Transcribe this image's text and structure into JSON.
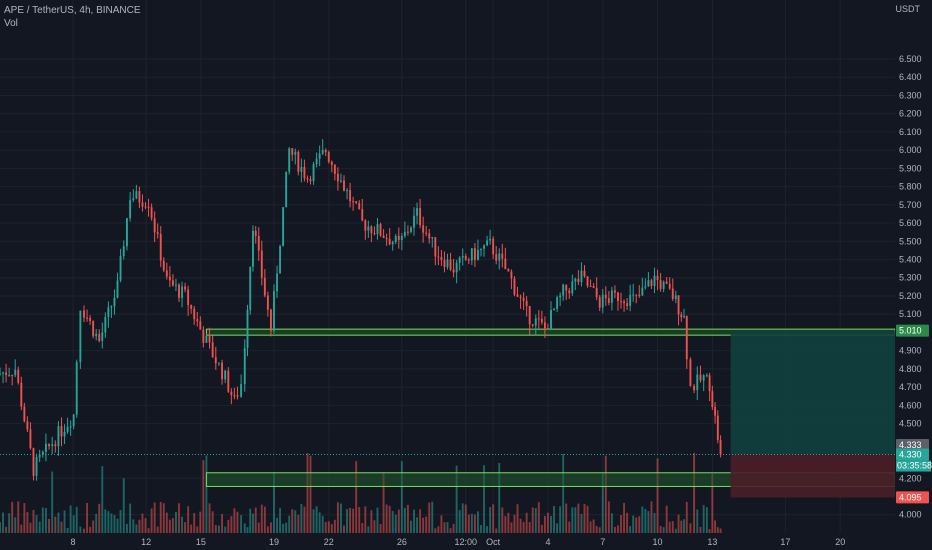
{
  "header": {
    "symbol": "APE / TetherUS, 4h, BINANCE",
    "indicator": "Vol",
    "currency": "USDT"
  },
  "colors": {
    "background": "#131722",
    "up": "#26a69a",
    "down": "#ef5350",
    "zone_fill": "#1f5a2c",
    "zone_border": "#7be05b",
    "target_zone": "#12403f",
    "stop_zone": "#4a1e28",
    "grid": "#1e222d"
  },
  "chart_data": {
    "type": "candlestick",
    "y_axis": {
      "range": [
        3.96,
        6.67
      ],
      "ticks": [
        "6.500",
        "6.400",
        "6.300",
        "6.200",
        "6.100",
        "6.000",
        "5.900",
        "5.800",
        "5.700",
        "5.600",
        "5.500",
        "5.400",
        "5.300",
        "5.200",
        "5.100",
        "4.900",
        "4.800",
        "4.700",
        "4.600",
        "4.500",
        "4.200",
        "4.000"
      ]
    },
    "x_axis": {
      "ticks": [
        "8",
        "12",
        "15",
        "19",
        "22",
        "26",
        "12:00",
        "Oct",
        "4",
        "7",
        "10",
        "13",
        "17",
        "20"
      ],
      "tick_days": [
        8,
        12,
        15,
        19,
        22,
        26,
        29.5,
        31,
        34,
        37,
        40,
        43,
        47,
        50
      ],
      "range_days": [
        4,
        53
      ]
    },
    "price_path": [
      [
        4.0,
        4.77
      ],
      [
        5.0,
        4.8
      ],
      [
        6.0,
        4.25
      ],
      [
        7.2,
        4.42
      ],
      [
        8.2,
        4.55
      ],
      [
        8.6,
        5.15
      ],
      [
        9.6,
        4.95
      ],
      [
        10.6,
        5.25
      ],
      [
        11.3,
        5.75
      ],
      [
        12.3,
        5.72
      ],
      [
        13.3,
        5.28
      ],
      [
        14.3,
        5.2
      ],
      [
        15.3,
        4.98
      ],
      [
        16.5,
        4.75
      ],
      [
        17.0,
        4.62
      ],
      [
        17.4,
        4.72
      ],
      [
        18.0,
        5.6
      ],
      [
        19.0,
        5.02
      ],
      [
        20.0,
        6.0
      ],
      [
        21.0,
        5.85
      ],
      [
        22.0,
        6.0
      ],
      [
        23.0,
        5.8
      ],
      [
        24.0,
        5.6
      ],
      [
        25.0,
        5.55
      ],
      [
        26.0,
        5.48
      ],
      [
        27.0,
        5.65
      ],
      [
        28.0,
        5.45
      ],
      [
        29.0,
        5.35
      ],
      [
        30.0,
        5.42
      ],
      [
        31.0,
        5.48
      ],
      [
        32.0,
        5.32
      ],
      [
        33.0,
        5.1
      ],
      [
        34.0,
        5.02
      ],
      [
        35.0,
        5.22
      ],
      [
        36.0,
        5.3
      ],
      [
        37.0,
        5.17
      ],
      [
        38.0,
        5.2
      ],
      [
        39.0,
        5.18
      ],
      [
        40.0,
        5.3
      ],
      [
        41.0,
        5.2
      ],
      [
        41.6,
        5.08
      ],
      [
        42.0,
        4.7
      ],
      [
        42.7,
        4.75
      ],
      [
        43.0,
        4.72
      ],
      [
        43.6,
        4.33
      ]
    ],
    "current_price": 4.33,
    "countdown": "03:35:58",
    "last_close_label": "4.333",
    "support_zones": [
      {
        "low": 4.985,
        "high": 5.018
      },
      {
        "low": 4.155,
        "high": 4.23
      }
    ],
    "position": {
      "entry": 4.333,
      "target": 5.01,
      "stop": 4.095,
      "start_day": 44.0,
      "end_day": 53.0
    },
    "price_labels": [
      {
        "text": "5.010",
        "value": 5.01,
        "color": "#2a8a47"
      },
      {
        "text": "4.333",
        "value": 4.333,
        "color": "#5d606b"
      },
      {
        "text": "4.330",
        "value": 4.33,
        "color": "#26a69a"
      },
      {
        "text": "4.095",
        "value": 4.095,
        "color": "#ef5350"
      }
    ]
  }
}
